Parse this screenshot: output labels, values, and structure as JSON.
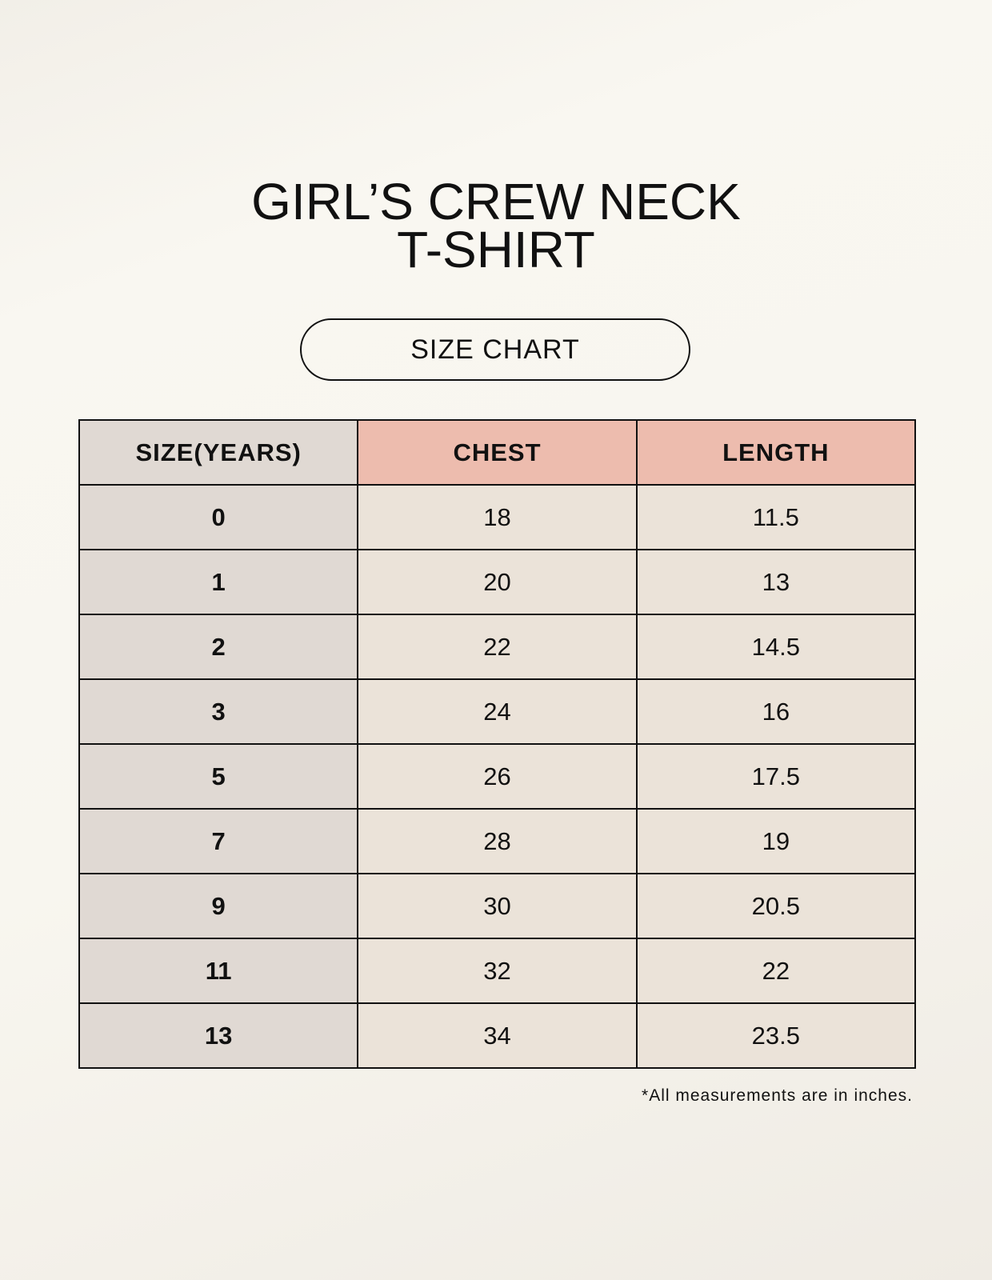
{
  "title_line1": "GIRL’S CREW NECK",
  "title_line2": "T-SHIRT",
  "subtitle": "SIZE CHART",
  "table": {
    "headers": [
      "SIZE(YEARS)",
      "CHEST",
      "LENGTH"
    ],
    "rows": [
      [
        "0",
        "18",
        "11.5"
      ],
      [
        "1",
        "20",
        "13"
      ],
      [
        "2",
        "22",
        "14.5"
      ],
      [
        "3",
        "24",
        "16"
      ],
      [
        "5",
        "26",
        "17.5"
      ],
      [
        "7",
        "28",
        "19"
      ],
      [
        "9",
        "30",
        "20.5"
      ],
      [
        "11",
        "32",
        "22"
      ],
      [
        "13",
        "34",
        "23.5"
      ]
    ]
  },
  "footnote": "*All measurements are in inches.",
  "colors": {
    "size_column": "#e0d9d3",
    "header_accent": "#edbcae",
    "cell_bg": "#ebe3d9"
  }
}
